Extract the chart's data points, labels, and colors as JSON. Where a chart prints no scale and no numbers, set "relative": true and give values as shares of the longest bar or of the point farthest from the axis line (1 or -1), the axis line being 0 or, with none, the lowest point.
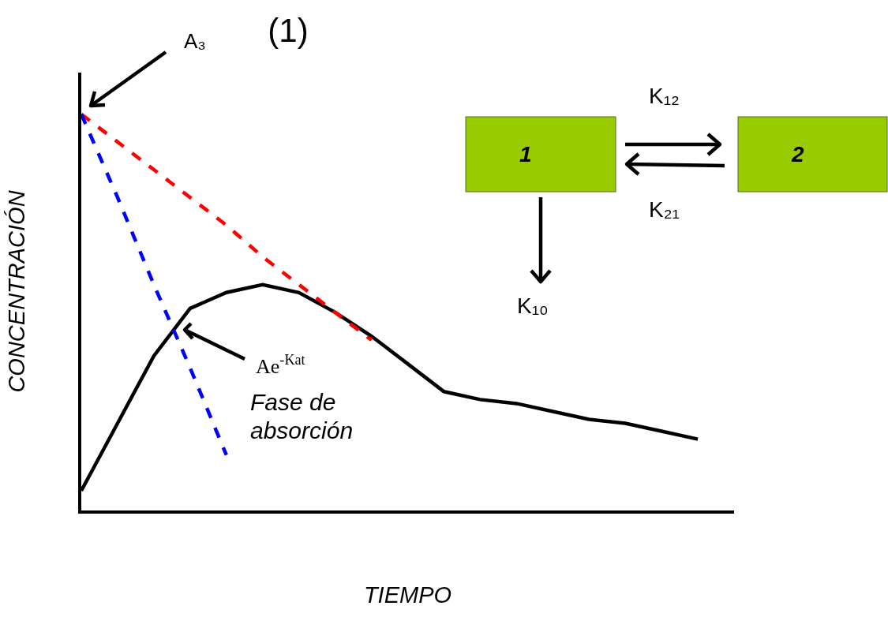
{
  "chart_data": {
    "type": "line",
    "relative": true,
    "title": "(1)",
    "xlabel": "TIEMPO",
    "ylabel": "CONCENTRACIÓN",
    "grid": false,
    "marker": "none",
    "categories": [
      null,
      null,
      null,
      null,
      null,
      null,
      null,
      null,
      null,
      null,
      null,
      null,
      null,
      null,
      null,
      null,
      null,
      null
    ],
    "series": [
      {
        "color": "#000000",
        "line_style": "solid",
        "values": [
          0.05,
          0.22,
          0.39,
          0.51,
          0.55,
          0.57,
          0.55,
          0.5,
          0.44,
          0.37,
          0.3,
          0.28,
          0.27,
          0.25,
          0.23,
          0.22,
          0.2,
          0.18
        ]
      },
      {
        "color": "#ff0000",
        "line_style": "dashed",
        "values": [
          1,
          0.93,
          0.86,
          0.79,
          0.72,
          0.64,
          0.57,
          0.5,
          0.43,
          null,
          null,
          null,
          null,
          null,
          null,
          null,
          null,
          null
        ]
      },
      {
        "color": "#0000ff",
        "line_style": "dashed",
        "values": [
          1,
          0.79,
          0.57,
          0.36,
          0.14,
          null,
          null,
          null,
          null,
          null,
          null,
          null,
          null,
          null,
          null,
          null,
          null,
          null
        ]
      }
    ],
    "annotations": [
      "A₃",
      "Ae$^{-Kat}$",
      "Fase de absorción",
      "1",
      "2",
      "K₁₂",
      "K₂₁",
      "K₁₀"
    ]
  }
}
